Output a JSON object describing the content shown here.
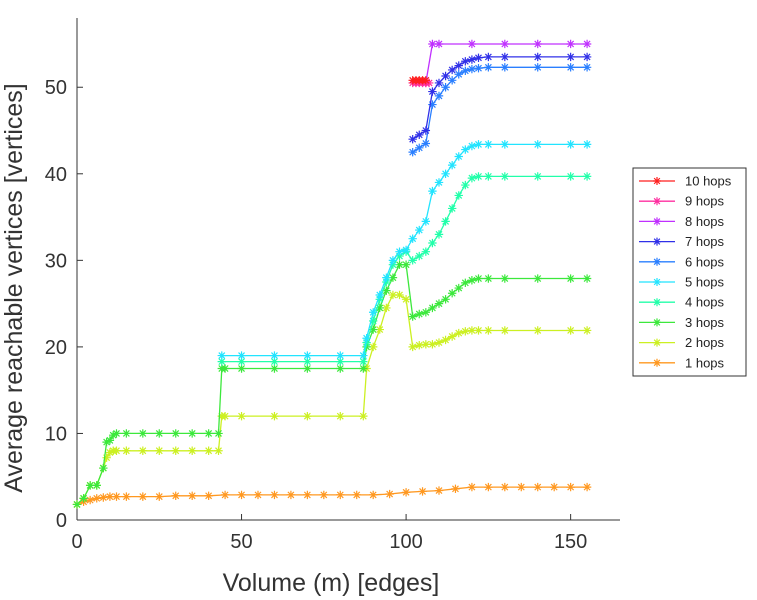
{
  "chart_data": {
    "type": "line",
    "xlabel": "Volume (m) [edges]",
    "ylabel": "Average reachable vertices [vertices]",
    "xlim": [
      0,
      165
    ],
    "ylim": [
      0,
      58
    ],
    "xticks": [
      0,
      50,
      100,
      150
    ],
    "yticks": [
      0,
      10,
      20,
      30,
      40,
      50
    ],
    "grid": false,
    "legend_position": "right",
    "marker": "asterisk",
    "series": [
      {
        "name": "10 hops",
        "color": "#ff1f1f",
        "x": [
          102,
          103,
          104,
          105,
          106
        ],
        "y": [
          50.8,
          50.8,
          50.8,
          50.8,
          50.8
        ]
      },
      {
        "name": "9 hops",
        "color": "#ff2fa0",
        "x": [
          102,
          103,
          104,
          105,
          106,
          107
        ],
        "y": [
          50.5,
          50.5,
          50.5,
          50.5,
          50.5,
          50.5
        ]
      },
      {
        "name": "8 hops",
        "color": "#c030ff",
        "x": [
          106,
          108,
          110,
          120,
          130,
          140,
          150,
          155
        ],
        "y": [
          50.5,
          55,
          55,
          55,
          55,
          55,
          55,
          55
        ]
      },
      {
        "name": "7 hops",
        "color": "#3030e8",
        "x": [
          102,
          104,
          106,
          108,
          110,
          112,
          114,
          116,
          118,
          120,
          122,
          125,
          130,
          140,
          150,
          155
        ],
        "y": [
          44,
          44.5,
          45,
          49.5,
          50.5,
          51.3,
          52,
          52.5,
          53,
          53.2,
          53.4,
          53.5,
          53.5,
          53.5,
          53.5,
          53.5
        ]
      },
      {
        "name": "6 hops",
        "color": "#2a7fff",
        "x": [
          102,
          104,
          106,
          108,
          110,
          112,
          114,
          116,
          118,
          120,
          122,
          125,
          130,
          140,
          150,
          155
        ],
        "y": [
          42.5,
          43,
          43.5,
          48,
          49,
          50,
          50.8,
          51.5,
          51.9,
          52.1,
          52.2,
          52.3,
          52.3,
          52.3,
          52.3,
          52.3
        ]
      },
      {
        "name": "5 hops",
        "color": "#22e4ff",
        "x": [
          44,
          50,
          60,
          70,
          80,
          87,
          88,
          90,
          92,
          94,
          96,
          98,
          100,
          102,
          104,
          106,
          108,
          110,
          112,
          114,
          116,
          118,
          120,
          122,
          125,
          130,
          140,
          150,
          155
        ],
        "y": [
          19,
          19,
          19,
          19,
          19,
          19,
          21,
          24,
          26,
          28,
          30,
          31,
          31.2,
          32.5,
          33.5,
          34.5,
          38,
          39,
          40,
          41,
          42,
          42.8,
          43.2,
          43.4,
          43.4,
          43.4,
          43.4,
          43.4,
          43.4
        ]
      },
      {
        "name": "4 hops",
        "color": "#22ffaa",
        "x": [
          44,
          50,
          60,
          70,
          80,
          87,
          88,
          90,
          92,
          94,
          96,
          98,
          100,
          102,
          104,
          106,
          108,
          110,
          112,
          114,
          116,
          118,
          120,
          122,
          125,
          130,
          140,
          150,
          155
        ],
        "y": [
          18.3,
          18.3,
          18.3,
          18.3,
          18.3,
          18.3,
          20.5,
          23,
          25.5,
          27.5,
          29.5,
          30.5,
          31,
          30,
          30.5,
          31,
          32,
          33,
          34.5,
          36,
          37.5,
          38.7,
          39.5,
          39.7,
          39.7,
          39.7,
          39.7,
          39.7,
          39.7
        ]
      },
      {
        "name": "3 hops",
        "color": "#3ce83c",
        "x": [
          0,
          2,
          4,
          6,
          8,
          9,
          10,
          11,
          12,
          15,
          20,
          25,
          30,
          35,
          40,
          43,
          44,
          45,
          50,
          60,
          70,
          80,
          87,
          88,
          90,
          92,
          94,
          96,
          98,
          100,
          102,
          104,
          106,
          108,
          110,
          112,
          114,
          116,
          118,
          120,
          122,
          125,
          130,
          140,
          150,
          155
        ],
        "y": [
          1.8,
          2.5,
          4,
          4,
          6,
          9,
          9.2,
          9.8,
          10,
          10,
          10,
          10,
          10,
          10,
          10,
          10,
          17.5,
          17.5,
          17.5,
          17.5,
          17.5,
          17.5,
          17.5,
          20,
          22,
          24.5,
          26.5,
          28,
          29.5,
          29.5,
          23.5,
          23.8,
          24,
          24.5,
          25,
          25.5,
          26.2,
          26.8,
          27.4,
          27.7,
          27.9,
          27.9,
          27.9,
          27.9,
          27.9,
          27.9
        ]
      },
      {
        "name": "2 hops",
        "color": "#ccf022",
        "x": [
          0,
          2,
          4,
          6,
          8,
          9,
          10,
          11,
          12,
          15,
          20,
          25,
          30,
          35,
          40,
          43,
          44,
          45,
          50,
          60,
          70,
          80,
          87,
          88,
          90,
          92,
          94,
          96,
          98,
          100,
          102,
          104,
          106,
          108,
          110,
          112,
          114,
          116,
          118,
          120,
          122,
          125,
          130,
          140,
          150,
          155
        ],
        "y": [
          1.8,
          2.5,
          4,
          4,
          6,
          7.2,
          7.8,
          8,
          8,
          8,
          8,
          8,
          8,
          8,
          8,
          8,
          12,
          12,
          12,
          12,
          12,
          12,
          12,
          17.5,
          20,
          22,
          24.5,
          26,
          26,
          25.5,
          20,
          20.2,
          20.3,
          20.3,
          20.5,
          20.8,
          21.2,
          21.6,
          21.8,
          21.9,
          21.9,
          21.9,
          21.9,
          21.9,
          21.9,
          21.9
        ]
      },
      {
        "name": "1 hops",
        "color": "#ff9820",
        "x": [
          0,
          2,
          4,
          6,
          8,
          10,
          12,
          15,
          20,
          25,
          30,
          35,
          40,
          45,
          50,
          55,
          60,
          65,
          70,
          75,
          80,
          85,
          90,
          95,
          100,
          105,
          110,
          115,
          120,
          125,
          130,
          135,
          140,
          145,
          150,
          155
        ],
        "y": [
          1.8,
          2.1,
          2.3,
          2.5,
          2.6,
          2.7,
          2.7,
          2.7,
          2.7,
          2.7,
          2.8,
          2.8,
          2.8,
          2.9,
          2.9,
          2.9,
          2.9,
          2.9,
          2.9,
          2.9,
          2.9,
          2.9,
          2.9,
          3,
          3.2,
          3.3,
          3.4,
          3.6,
          3.8,
          3.8,
          3.8,
          3.8,
          3.8,
          3.8,
          3.8,
          3.8
        ]
      }
    ]
  }
}
